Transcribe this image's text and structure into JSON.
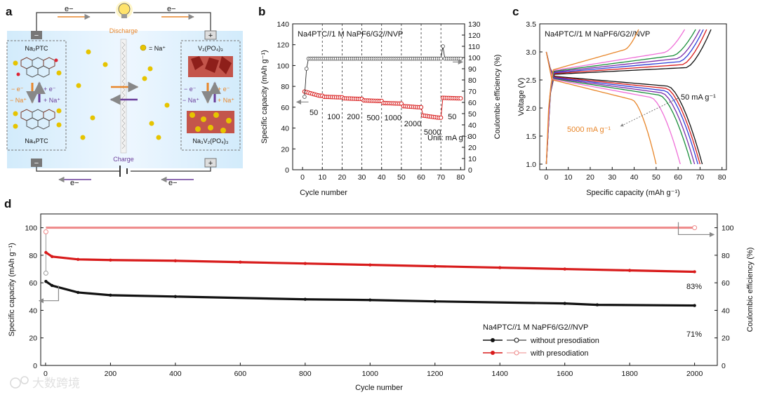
{
  "panel_letters": [
    "a",
    "b",
    "c",
    "d"
  ],
  "watermark": "大数跨境",
  "panel_a": {
    "electron_label": "e−",
    "discharge_label": "Discharge",
    "charge_label": "Charge",
    "na_legend": "= Na⁺",
    "anode_top": "Na₂PTC",
    "anode_bottom": "Na₄PTC",
    "cathode_top": "V₂(PO₄)₃",
    "cathode_bottom": "Na₃V₂(PO₄)₃",
    "minus_sign": "−",
    "plus_sign": "+",
    "left_arrows": [
      "− e⁻",
      "+ e⁻",
      "− Na⁺",
      "+ Na⁺"
    ],
    "right_arrows": [
      "− e⁻",
      "+ e⁻",
      "− Na⁺",
      "+ Na⁺"
    ],
    "colors": {
      "orange": "#e8862a",
      "purple": "#6a3d9a",
      "bg": "#dcefff"
    }
  },
  "chart_data": [
    {
      "id": "b",
      "type": "scatter",
      "title": "Na4PTC//1 M NaPF6/G2//NVP",
      "xlabel": "Cycle number",
      "ylabel": "Specific capacity (mAh g⁻¹)",
      "y2label": "Coulombic efficiency (%)",
      "xlim": [
        -5,
        82
      ],
      "ylim": [
        0,
        140
      ],
      "y2lim": [
        0,
        130
      ],
      "xticks": [
        0,
        10,
        20,
        30,
        40,
        50,
        60,
        70,
        80
      ],
      "yticks": [
        0,
        20,
        40,
        60,
        80,
        100,
        120,
        140
      ],
      "y2ticks": [
        0,
        10,
        20,
        30,
        40,
        50,
        60,
        70,
        80,
        90,
        100,
        110,
        120,
        130
      ],
      "rate_labels": [
        "50",
        "100",
        "200",
        "500",
        "1000",
        "2000",
        "5000",
        "50"
      ],
      "unit_label": "Unit: mA g⁻¹",
      "rate_boundaries": [
        10,
        20,
        30,
        40,
        50,
        60,
        70
      ],
      "capacity_steps": [
        {
          "start": 1,
          "end": 10,
          "values": [
            75,
            72,
            71
          ]
        },
        {
          "start": 11,
          "end": 20,
          "values": [
            70,
            69.5
          ]
        },
        {
          "start": 21,
          "end": 30,
          "values": [
            68.5,
            68
          ]
        },
        {
          "start": 31,
          "end": 40,
          "values": [
            66.5,
            66
          ]
        },
        {
          "start": 41,
          "end": 50,
          "values": [
            64,
            63.5
          ]
        },
        {
          "start": 51,
          "end": 60,
          "values": [
            61,
            60
          ]
        },
        {
          "start": 61,
          "end": 70,
          "values": [
            52,
            50
          ]
        },
        {
          "start": 71,
          "end": 80,
          "values": [
            69,
            68.5
          ]
        }
      ],
      "ce_values": {
        "first": 65,
        "second": 90,
        "steady": 99,
        "spike_cycle": 71,
        "spike": 110
      }
    },
    {
      "id": "c",
      "type": "line",
      "title": "Na4PTC//1 M NaPF6/G2//NVP",
      "xlabel": "Specific capacity (mAh g⁻¹)",
      "ylabel": "Voltage (V)",
      "xlim": [
        -3,
        82
      ],
      "ylim": [
        0.9,
        3.5
      ],
      "xticks": [
        0,
        10,
        20,
        30,
        40,
        50,
        60,
        70,
        80
      ],
      "yticks": [
        1.0,
        1.5,
        2.0,
        2.5,
        3.0,
        3.5
      ],
      "label_high": "50 mA g⁻¹",
      "label_low": "5000 mA g⁻¹",
      "series": [
        {
          "rate": 50,
          "color": "#111111",
          "capacity": 71,
          "charge_end": 75
        },
        {
          "rate": 100,
          "color": "#d81b1b",
          "capacity": 70,
          "charge_end": 73
        },
        {
          "rate": 200,
          "color": "#2f3fd6",
          "capacity": 69,
          "charge_end": 71.5
        },
        {
          "rate": 500,
          "color": "#7a2aa8",
          "capacity": 67.5,
          "charge_end": 70
        },
        {
          "rate": 1000,
          "color": "#1a8f3a",
          "capacity": 66,
          "charge_end": 68
        },
        {
          "rate": 2000,
          "color": "#ef6fd8",
          "capacity": 61,
          "charge_end": 63
        },
        {
          "rate": 5000,
          "color": "#e8862a",
          "capacity": 50,
          "charge_end": 42
        }
      ]
    },
    {
      "id": "d",
      "type": "scatter",
      "xlabel": "Cycle number",
      "ylabel": "Specific capacity (mAh g⁻¹)",
      "y2label": "Coulombic efficiency (%)",
      "xlim": [
        -15,
        2070
      ],
      "ylim": [
        0,
        110
      ],
      "y2lim": [
        0,
        110
      ],
      "xticks": [
        0,
        200,
        400,
        600,
        800,
        1000,
        1200,
        1400,
        1600,
        1800,
        2000
      ],
      "yticks": [
        0,
        20,
        40,
        60,
        80,
        100
      ],
      "y2ticks": [
        0,
        20,
        40,
        60,
        80,
        100
      ],
      "legend_title": "Na4PTC//1 M NaPF6/G2//NVP",
      "series": [
        {
          "name": "without presodiation",
          "color": "#111111",
          "capacity_points": [
            [
              1,
              61
            ],
            [
              20,
              58
            ],
            [
              100,
              53
            ],
            [
              200,
              51
            ],
            [
              400,
              50
            ],
            [
              800,
              48
            ],
            [
              1000,
              47.5
            ],
            [
              1200,
              46.5
            ],
            [
              1600,
              45
            ],
            [
              1700,
              44
            ],
            [
              2000,
              43.5
            ]
          ],
          "retention": "71%"
        },
        {
          "name": "with presodiation",
          "color": "#d81b1b",
          "capacity_points": [
            [
              1,
              82
            ],
            [
              20,
              79
            ],
            [
              100,
              77
            ],
            [
              200,
              76.5
            ],
            [
              400,
              76
            ],
            [
              600,
              75
            ],
            [
              800,
              74
            ],
            [
              1000,
              73
            ],
            [
              1200,
              72
            ],
            [
              1400,
              71
            ],
            [
              1600,
              70
            ],
            [
              1800,
              69
            ],
            [
              2000,
              68
            ]
          ],
          "retention": "83%"
        }
      ],
      "ce_first": [
        67,
        97
      ],
      "ce_steady": 100
    }
  ]
}
